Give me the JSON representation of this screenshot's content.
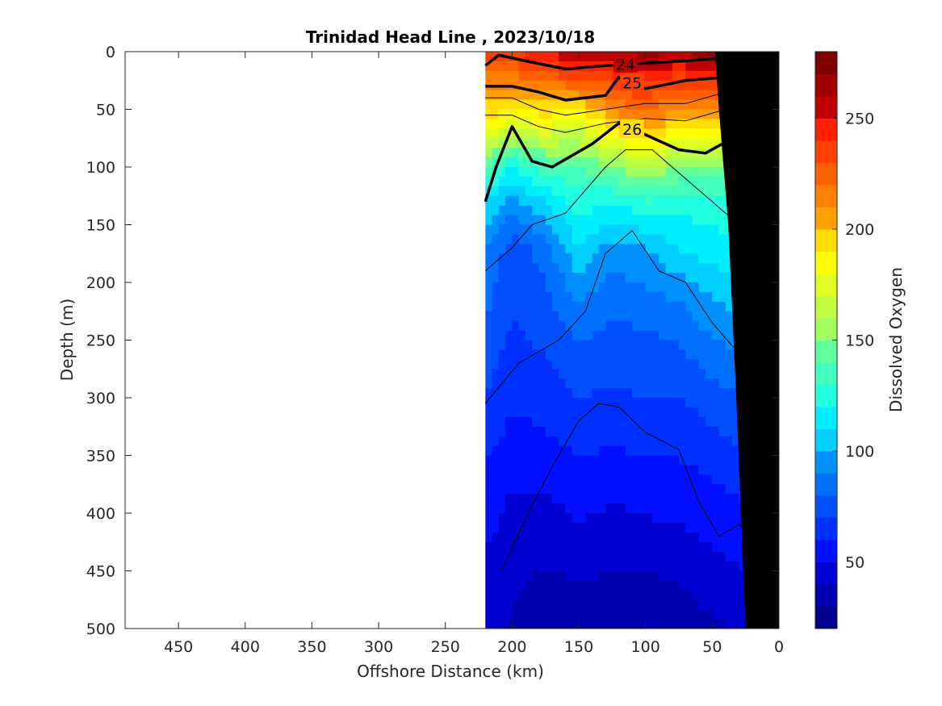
{
  "chart_data": {
    "type": "heatmap",
    "title": "Trinidad Head Line , 2023/10/18",
    "xlabel": "Offshore Distance (km)",
    "ylabel": "Depth (m)",
    "colorbar_label": "Dissolved Oxygen",
    "xlim": [
      490,
      0
    ],
    "ylim": [
      0,
      500
    ],
    "x_reversed": true,
    "y_reversed": true,
    "x_ticks": [
      450,
      400,
      350,
      300,
      250,
      200,
      150,
      100,
      50,
      0
    ],
    "y_ticks": [
      0,
      50,
      100,
      150,
      200,
      250,
      300,
      350,
      400,
      450,
      500
    ],
    "colorbar_range": [
      20,
      280
    ],
    "colorbar_ticks": [
      50,
      100,
      150,
      200,
      250
    ],
    "colorbar_levels": [
      20,
      30,
      40,
      50,
      60,
      70,
      80,
      90,
      100,
      110,
      120,
      130,
      140,
      150,
      160,
      170,
      180,
      190,
      200,
      210,
      220,
      230,
      240,
      250,
      260,
      270,
      280
    ],
    "colorbar_colors": [
      "#00008f",
      "#0000b0",
      "#0000d0",
      "#0000ef",
      "#0010ff",
      "#0030ff",
      "#0050ff",
      "#0070ff",
      "#0090ff",
      "#00afff",
      "#00d0ff",
      "#00efff",
      "#20ffdf",
      "#40ffbf",
      "#60ff9f",
      "#80ff80",
      "#a0ff60",
      "#c0ff40",
      "#e0ff20",
      "#ffff00",
      "#ffdf00",
      "#ffbf00",
      "#ff9f00",
      "#ff8000",
      "#ff6000",
      "#ff4000",
      "#ff2000",
      "#e00000",
      "#c00000",
      "#a00000",
      "#800000"
    ],
    "data_extent_x": [
      220,
      0
    ],
    "section": {
      "depth_levels": [
        0,
        60,
        100,
        130,
        170,
        230,
        300,
        380,
        460,
        500
      ],
      "profiles": [
        {
          "x": 220,
          "o2": [
            235,
            190,
            140,
            110,
            90,
            80,
            70,
            55,
            48,
            45
          ]
        },
        {
          "x": 200,
          "o2": [
            240,
            180,
            120,
            95,
            75,
            70,
            62,
            50,
            42,
            38
          ]
        },
        {
          "x": 175,
          "o2": [
            250,
            185,
            135,
            110,
            85,
            75,
            65,
            50,
            38,
            33
          ]
        },
        {
          "x": 150,
          "o2": [
            265,
            175,
            140,
            125,
            110,
            85,
            70,
            55,
            40,
            33
          ]
        },
        {
          "x": 125,
          "o2": [
            260,
            200,
            150,
            120,
            95,
            80,
            68,
            52,
            38,
            30
          ]
        },
        {
          "x": 100,
          "o2": [
            265,
            215,
            160,
            130,
            100,
            82,
            70,
            55,
            38,
            30
          ]
        },
        {
          "x": 75,
          "o2": [
            262,
            195,
            150,
            125,
            110,
            85,
            70,
            55,
            40,
            33
          ]
        },
        {
          "x": 50,
          "o2": [
            270,
            200,
            145,
            125,
            115,
            95,
            75,
            58,
            45,
            38
          ]
        },
        {
          "x": 25,
          "o2": [
            268,
            210,
            150,
            130,
            118,
            100,
            80,
            62,
            48,
            42
          ]
        },
        {
          "x": 10,
          "o2": [
            260,
            210,
            150,
            130,
            120,
            105,
            85,
            65,
            50,
            45
          ]
        }
      ]
    },
    "density_contours": [
      {
        "label": "24",
        "bold": true,
        "points": [
          [
            220,
            12
          ],
          [
            210,
            3
          ],
          [
            190,
            8
          ],
          [
            160,
            15
          ],
          [
            130,
            12
          ],
          [
            100,
            10
          ],
          [
            70,
            8
          ],
          [
            40,
            5
          ],
          [
            30,
            0
          ]
        ]
      },
      {
        "label": "25",
        "bold": true,
        "points": [
          [
            220,
            30
          ],
          [
            200,
            30
          ],
          [
            180,
            35
          ],
          [
            160,
            42
          ],
          [
            130,
            38
          ],
          [
            120,
            22
          ],
          [
            100,
            32
          ],
          [
            70,
            25
          ],
          [
            40,
            22
          ],
          [
            10,
            20
          ]
        ]
      },
      {
        "label": "26",
        "bold": true,
        "points": [
          [
            220,
            130
          ],
          [
            212,
            100
          ],
          [
            200,
            65
          ],
          [
            185,
            95
          ],
          [
            170,
            100
          ],
          [
            140,
            80
          ],
          [
            120,
            62
          ],
          [
            100,
            72
          ],
          [
            75,
            85
          ],
          [
            55,
            88
          ],
          [
            35,
            75
          ],
          [
            10,
            85
          ]
        ]
      },
      {
        "label": "",
        "bold": false,
        "points": [
          [
            220,
            40
          ],
          [
            200,
            40
          ],
          [
            180,
            50
          ],
          [
            160,
            55
          ],
          [
            130,
            50
          ],
          [
            100,
            45
          ],
          [
            70,
            45
          ],
          [
            40,
            35
          ],
          [
            10,
            50
          ]
        ]
      },
      {
        "label": "",
        "bold": false,
        "points": [
          [
            220,
            55
          ],
          [
            200,
            55
          ],
          [
            180,
            65
          ],
          [
            160,
            70
          ],
          [
            130,
            62
          ],
          [
            100,
            58
          ],
          [
            70,
            60
          ],
          [
            40,
            50
          ],
          [
            10,
            60
          ]
        ]
      },
      {
        "label": "",
        "bold": false,
        "points": [
          [
            220,
            190
          ],
          [
            200,
            170
          ],
          [
            185,
            150
          ],
          [
            160,
            140
          ],
          [
            130,
            100
          ],
          [
            115,
            85
          ],
          [
            95,
            85
          ],
          [
            75,
            105
          ],
          [
            50,
            130
          ],
          [
            35,
            145
          ],
          [
            10,
            160
          ]
        ]
      },
      {
        "label": "",
        "bold": false,
        "points": [
          [
            220,
            305
          ],
          [
            195,
            270
          ],
          [
            165,
            250
          ],
          [
            145,
            225
          ],
          [
            130,
            175
          ],
          [
            110,
            155
          ],
          [
            90,
            190
          ],
          [
            70,
            200
          ],
          [
            50,
            235
          ],
          [
            35,
            255
          ],
          [
            22,
            270
          ],
          [
            10,
            295
          ]
        ]
      },
      {
        "label": "",
        "bold": false,
        "points": [
          [
            208,
            450
          ],
          [
            188,
            400
          ],
          [
            170,
            360
          ],
          [
            150,
            320
          ],
          [
            135,
            305
          ],
          [
            120,
            308
          ],
          [
            100,
            330
          ],
          [
            75,
            345
          ],
          [
            60,
            390
          ],
          [
            45,
            420
          ],
          [
            30,
            410
          ],
          [
            18,
            420
          ]
        ]
      }
    ],
    "bottom_profile": [
      [
        25,
        500
      ],
      [
        32,
        300
      ],
      [
        38,
        150
      ],
      [
        45,
        50
      ],
      [
        48,
        0
      ]
    ]
  }
}
